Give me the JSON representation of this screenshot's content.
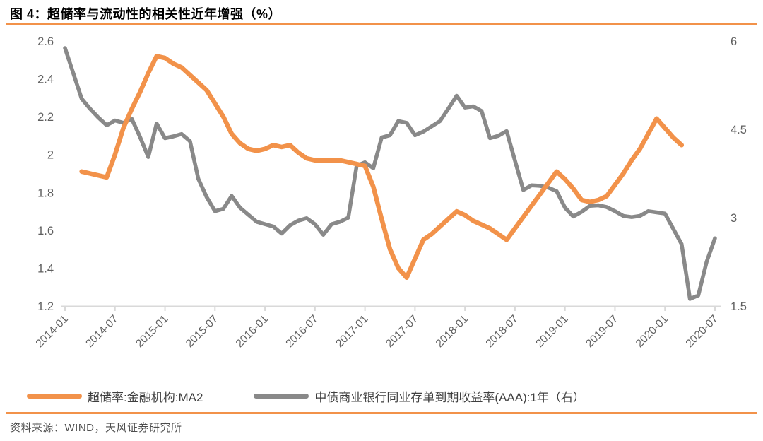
{
  "title": "图 4：超储率与流动性的相关性近年增强（%）",
  "source": "资料来源：WIND，天风证券研究所",
  "colors": {
    "accent_orange": "#F2924A",
    "series_gray": "#898989",
    "axis_line": "#D9D9D9",
    "tick_label": "#5F5F5F",
    "title_text": "#000000",
    "source_text": "#4D4D4D"
  },
  "legend": [
    {
      "label": "超储率:金融机构:MA2",
      "color": "#F2924A"
    },
    {
      "label": "中债商业银行同业存单到期收益率(AAA):1年（右）",
      "color": "#898989"
    }
  ],
  "chart_data": {
    "type": "line",
    "title": "图 4：超储率与流动性的相关性近年增强（%）",
    "x_start": "2014-01",
    "x_end": "2020-07",
    "x_frequency": "monthly",
    "x_total_months": 79,
    "x_tick_labels": [
      "2014-01",
      "2014-07",
      "2015-01",
      "2015-07",
      "2016-01",
      "2016-07",
      "2017-01",
      "2017-07",
      "2018-01",
      "2018-07",
      "2019-01",
      "2019-07",
      "2020-01",
      "2020-07"
    ],
    "x_tick_interval_months": 6,
    "left_axis": {
      "min": 1.2,
      "max": 2.6,
      "ticks": [
        2.6,
        2.4,
        2.2,
        2,
        1.8,
        1.6,
        1.4,
        1.2
      ]
    },
    "right_axis": {
      "min": 1.5,
      "max": 6,
      "ticks": [
        6,
        4.5,
        3,
        1.5
      ]
    },
    "grid": false,
    "legend_position": "bottom",
    "series": [
      {
        "name": "中债商业银行同业存单到期收益率(AAA):1年（右）",
        "axis": "right",
        "color": "#898989",
        "line_width": 5.5,
        "start_month_index": 0,
        "start_label": "2014-01",
        "values": [
          5.88,
          5.45,
          5.02,
          4.85,
          4.7,
          4.57,
          4.65,
          4.61,
          4.68,
          4.37,
          4.03,
          4.6,
          4.35,
          4.38,
          4.42,
          4.3,
          3.66,
          3.35,
          3.11,
          3.15,
          3.37,
          3.17,
          3.05,
          2.93,
          2.89,
          2.85,
          2.73,
          2.87,
          2.95,
          2.99,
          2.89,
          2.71,
          2.89,
          2.93,
          3.0,
          3.88,
          3.94,
          3.84,
          4.36,
          4.4,
          4.64,
          4.61,
          4.4,
          4.46,
          4.55,
          4.64,
          4.85,
          5.07,
          4.87,
          4.89,
          4.81,
          4.35,
          4.39,
          4.47,
          3.97,
          3.47,
          3.55,
          3.54,
          3.51,
          3.45,
          3.17,
          3.02,
          3.1,
          3.2,
          3.21,
          3.18,
          3.11,
          3.03,
          3.01,
          3.03,
          3.11,
          3.09,
          3.07,
          2.81,
          2.55,
          1.62,
          1.68,
          2.25,
          2.65
        ]
      },
      {
        "name": "超储率:金融机构:MA2",
        "axis": "left",
        "color": "#F2924A",
        "line_width": 6.5,
        "start_month_index": 2,
        "start_label": "2014-03",
        "values": [
          1.91,
          1.9,
          1.89,
          1.88,
          2.0,
          2.14,
          2.24,
          2.33,
          2.43,
          2.52,
          2.51,
          2.48,
          2.46,
          2.42,
          2.38,
          2.34,
          2.27,
          2.2,
          2.11,
          2.06,
          2.03,
          2.02,
          2.03,
          2.05,
          2.04,
          2.05,
          2.01,
          1.98,
          1.97,
          1.97,
          1.97,
          1.97,
          1.96,
          1.95,
          1.94,
          1.83,
          1.66,
          1.5,
          1.4,
          1.35,
          1.45,
          1.55,
          1.58,
          1.62,
          1.66,
          1.7,
          1.68,
          1.65,
          1.63,
          1.61,
          1.58,
          1.55,
          1.61,
          1.67,
          1.73,
          1.79,
          1.85,
          1.91,
          1.87,
          1.82,
          1.76,
          1.75,
          1.76,
          1.78,
          1.84,
          1.9,
          1.97,
          2.03,
          2.11,
          2.19,
          2.14,
          2.09,
          2.05
        ]
      }
    ]
  }
}
